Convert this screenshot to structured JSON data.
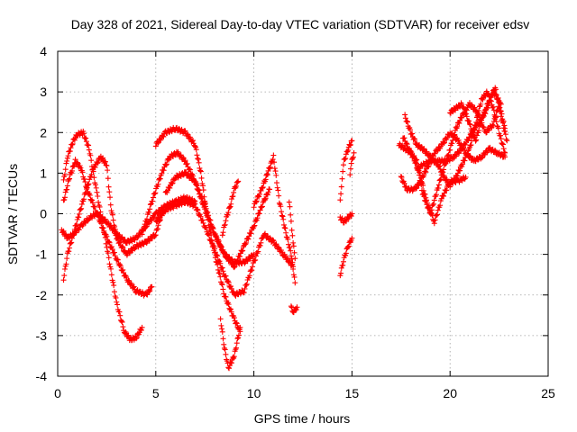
{
  "chart_data": {
    "type": "scatter",
    "title": "Day 328 of 2021, Sidereal Day-to-day VTEC variation (SDTVAR) for receiver edsv",
    "xlabel": "GPS time / hours",
    "ylabel": "SDTVAR / TECUs",
    "xlim": [
      0,
      25
    ],
    "ylim": [
      -4,
      4
    ],
    "xticks": [
      0,
      5,
      10,
      15,
      20,
      25
    ],
    "yticks": [
      -4,
      -3,
      -2,
      -1,
      0,
      1,
      2,
      3,
      4
    ],
    "xtick_labels": [
      "0",
      "5",
      "10",
      "15",
      "20",
      "25"
    ],
    "ytick_labels": [
      "-4",
      "-3",
      "-2",
      "-1",
      "0",
      "1",
      "2",
      "3",
      "4"
    ],
    "grid": true,
    "marker": "+",
    "color": "#ff0000",
    "tracks": [
      {
        "x": [
          0.3,
          0.5,
          0.8,
          1.0,
          1.3,
          1.6,
          2.0,
          2.5,
          3.0,
          3.4,
          3.7,
          4.0,
          4.3
        ],
        "y": [
          0.8,
          1.4,
          1.8,
          1.95,
          2.0,
          1.6,
          0.5,
          -0.8,
          -2.2,
          -2.9,
          -3.1,
          -3.05,
          -2.8
        ]
      },
      {
        "x": [
          0.3,
          0.6,
          0.9,
          1.2,
          1.5,
          2.0,
          2.5,
          3.0,
          3.5,
          4.0,
          4.5,
          4.8
        ],
        "y": [
          0.3,
          0.9,
          1.3,
          1.1,
          0.6,
          0.0,
          -0.6,
          -1.1,
          -1.6,
          -1.9,
          -2.0,
          -1.8
        ]
      },
      {
        "x": [
          0.2,
          0.5,
          0.8,
          1.1,
          1.4,
          1.8,
          2.2,
          2.5,
          2.7,
          3.0,
          3.5,
          4.0,
          4.5,
          5.0,
          5.3
        ],
        "y": [
          -0.4,
          -0.6,
          -0.5,
          0.0,
          0.5,
          1.1,
          1.4,
          1.2,
          0.2,
          -0.6,
          -1.0,
          -0.8,
          -0.7,
          -0.5,
          0.0
        ]
      },
      {
        "x": [
          0.3,
          0.5,
          0.8,
          1.2,
          1.6,
          2.0,
          2.5,
          3.0,
          3.5,
          4.0,
          4.5,
          5.0,
          5.5,
          6.0,
          6.5,
          7.0
        ],
        "y": [
          -1.6,
          -1.0,
          -0.5,
          -0.3,
          -0.1,
          0.0,
          -0.2,
          -0.5,
          -0.7,
          -0.6,
          -0.3,
          0.0,
          0.2,
          0.3,
          0.4,
          0.3
        ]
      },
      {
        "x": [
          5.0,
          5.5,
          6.0,
          6.5,
          7.0,
          7.3,
          7.6,
          8.0,
          8.5,
          9.0,
          9.3
        ],
        "y": [
          1.7,
          2.0,
          2.1,
          2.0,
          1.7,
          1.0,
          0.0,
          -1.0,
          -2.0,
          -2.6,
          -2.9
        ]
      },
      {
        "x": [
          4.3,
          4.8,
          5.3,
          5.7,
          6.1,
          6.5,
          7.0,
          7.5,
          8.0,
          8.5,
          9.0,
          9.5,
          10.0
        ],
        "y": [
          -0.5,
          0.3,
          1.0,
          1.4,
          1.5,
          1.3,
          0.8,
          0.1,
          -0.5,
          -1.0,
          -1.2,
          -1.2,
          -1.0
        ]
      },
      {
        "x": [
          5.5,
          6.0,
          6.5,
          7.0,
          7.5,
          8.0,
          8.5,
          9.0,
          9.5,
          10.0,
          10.5,
          10.8
        ],
        "y": [
          0.5,
          0.9,
          1.0,
          0.8,
          0.2,
          -0.5,
          -1.0,
          -1.3,
          -0.8,
          -0.3,
          0.3,
          0.6
        ]
      },
      {
        "x": [
          5.0,
          5.5,
          6.0,
          6.5,
          7.0,
          7.5,
          8.0,
          8.5,
          9.0,
          9.5,
          10.0,
          10.5,
          11.0,
          11.5,
          12.0
        ],
        "y": [
          -0.2,
          0.1,
          0.2,
          0.3,
          0.2,
          -0.3,
          -0.9,
          -1.5,
          -2.0,
          -1.9,
          -1.2,
          -0.5,
          -0.7,
          -1.0,
          -1.3
        ]
      },
      {
        "x": [
          8.3,
          8.5,
          8.7,
          9.0,
          9.3
        ],
        "y": [
          -2.6,
          -3.3,
          -3.8,
          -3.5,
          -2.8
        ]
      },
      {
        "x": [
          8.4,
          8.6,
          8.8,
          9.0,
          9.2
        ],
        "y": [
          -0.5,
          -0.1,
          0.2,
          0.6,
          0.8
        ]
      },
      {
        "x": [
          10.0,
          10.4,
          10.7,
          11.0,
          11.3,
          11.6,
          11.9,
          12.1
        ],
        "y": [
          0.2,
          0.6,
          1.0,
          1.4,
          0.3,
          -0.4,
          -1.0,
          -1.7
        ]
      },
      {
        "x": [
          11.8,
          11.9,
          12.0,
          12.1
        ],
        "y": [
          0.3,
          -0.2,
          -0.7,
          -1.1
        ]
      },
      {
        "x": [
          11.9,
          12.0,
          12.1,
          12.2
        ],
        "y": [
          -2.3,
          -2.4,
          -2.4,
          -2.3
        ]
      },
      {
        "x": [
          14.4,
          14.5,
          14.6,
          14.8,
          15.0
        ],
        "y": [
          0.3,
          0.9,
          1.3,
          1.6,
          1.8
        ]
      },
      {
        "x": [
          14.4,
          14.6,
          14.8,
          15.0
        ],
        "y": [
          -0.1,
          -0.2,
          -0.1,
          0.0
        ]
      },
      {
        "x": [
          14.4,
          14.6,
          14.8,
          15.0
        ],
        "y": [
          -1.5,
          -1.1,
          -0.8,
          -0.6
        ]
      },
      {
        "x": [
          14.9,
          15.0,
          15.1
        ],
        "y": [
          1.0,
          1.3,
          1.5
        ]
      },
      {
        "x": [
          17.4,
          17.7,
          18.0,
          18.3,
          18.6,
          19.0,
          19.3,
          19.6,
          20.0,
          20.3,
          20.6,
          21.0,
          21.4,
          21.8,
          22.2,
          22.5,
          22.8
        ],
        "y": [
          1.7,
          1.6,
          1.5,
          1.3,
          0.5,
          0.0,
          0.5,
          1.0,
          1.6,
          2.1,
          2.4,
          2.7,
          2.5,
          2.0,
          2.2,
          2.7,
          2.1
        ]
      },
      {
        "x": [
          17.5,
          17.8,
          18.2,
          18.5,
          18.8,
          19.2,
          19.6,
          20.0,
          20.4,
          20.8,
          21.2,
          21.6,
          22.0,
          22.4,
          22.8
        ],
        "y": [
          0.9,
          0.6,
          0.6,
          0.8,
          1.1,
          1.5,
          1.7,
          2.0,
          1.8,
          1.5,
          1.3,
          1.4,
          1.6,
          1.5,
          1.4
        ]
      },
      {
        "x": [
          17.7,
          18.0,
          18.3,
          18.6,
          19.0,
          19.4,
          19.7,
          20.0,
          20.3,
          20.6,
          21.0,
          21.3,
          21.6,
          21.9,
          22.2,
          22.5,
          22.8
        ],
        "y": [
          2.4,
          2.0,
          1.7,
          1.6,
          1.4,
          1.2,
          0.9,
          0.7,
          0.9,
          1.2,
          1.6,
          2.2,
          2.8,
          3.0,
          2.6,
          2.0,
          1.5
        ]
      },
      {
        "x": [
          18.3,
          18.6,
          19.0,
          19.4,
          19.8,
          20.2,
          20.6,
          21.0,
          21.4,
          21.8,
          22.2,
          22.6
        ],
        "y": [
          1.1,
          1.2,
          1.3,
          1.3,
          1.3,
          1.4,
          1.6,
          1.9,
          2.2,
          2.5,
          3.0,
          2.7
        ]
      },
      {
        "x": [
          20.0,
          20.3,
          20.6,
          21.0,
          21.3,
          21.6,
          22.0,
          22.3,
          22.6,
          22.9
        ],
        "y": [
          2.5,
          2.6,
          2.7,
          2.2,
          1.8,
          2.3,
          2.8,
          3.1,
          2.4,
          1.8
        ]
      },
      {
        "x": [
          17.6,
          18.0,
          18.4,
          18.8,
          19.2,
          19.6,
          20.0,
          20.4,
          20.8
        ],
        "y": [
          1.9,
          1.5,
          1.1,
          0.3,
          -0.2,
          0.4,
          0.8,
          0.8,
          0.9
        ]
      }
    ]
  }
}
